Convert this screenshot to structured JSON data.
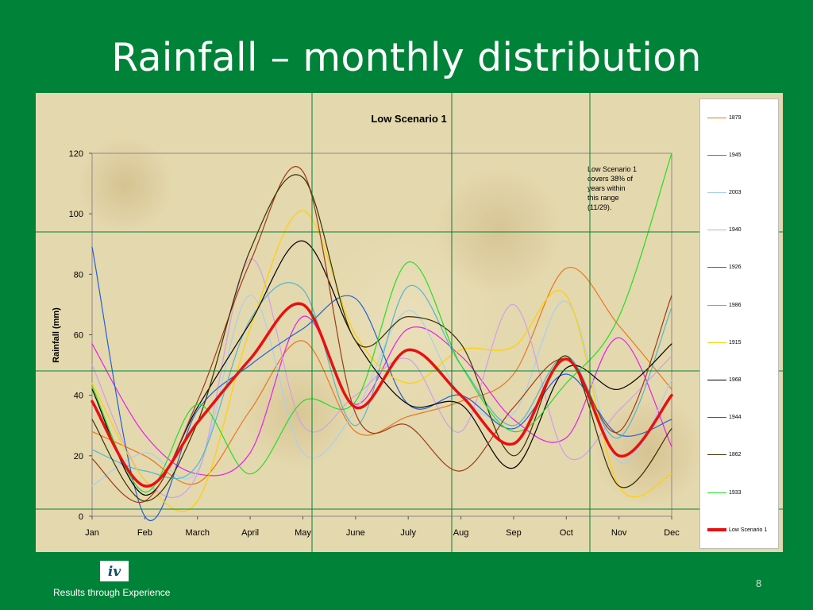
{
  "slide": {
    "title": "Rainfall – monthly distribution",
    "tagline": "Results through Experience",
    "page_number": "8",
    "logo_text": "iv"
  },
  "colors": {
    "background": "#008238",
    "chart_panel": "#e4d8ae",
    "divider_lines": "#008238"
  },
  "chart_data": {
    "type": "line",
    "title": "Low Scenario 1",
    "xlabel": "",
    "ylabel": "Rainfall (mm)",
    "ylim": [
      0,
      120
    ],
    "yticks": [
      0,
      20,
      40,
      60,
      80,
      100,
      120
    ],
    "grid": false,
    "legend_position": "right",
    "categories": [
      "Jan",
      "Feb",
      "March",
      "April",
      "May",
      "June",
      "July",
      "Aug",
      "Sep",
      "Oct",
      "Nov",
      "Dec"
    ],
    "annotation": "Low Scenario 1 covers 38% of years within this range (11/29).",
    "series": [
      {
        "name": "1879",
        "color": "#e8781e",
        "width": 1.2,
        "values": [
          28,
          20,
          11,
          35,
          58,
          28,
          33,
          38,
          47,
          82,
          63,
          42
        ]
      },
      {
        "name": "1945",
        "color": "#e81ee8",
        "width": 1.2,
        "values": [
          57,
          27,
          14,
          21,
          66,
          37,
          62,
          53,
          32,
          26,
          59,
          23
        ]
      },
      {
        "name": "2003",
        "color": "#a8d0f0",
        "width": 1.2,
        "values": [
          10,
          21,
          15,
          73,
          21,
          35,
          68,
          40,
          34,
          71,
          18,
          45
        ]
      },
      {
        "name": "1940",
        "color": "#d0a0e8",
        "width": 1.2,
        "values": [
          50,
          12,
          14,
          85,
          30,
          40,
          52,
          28,
          70,
          20,
          35,
          53
        ]
      },
      {
        "name": "1926",
        "color": "#2060d8",
        "width": 1.2,
        "values": [
          89,
          0,
          35,
          50,
          62,
          72,
          37,
          40,
          29,
          47,
          27,
          32
        ]
      },
      {
        "name": "1986",
        "color": "#50b8c8",
        "width": 1.2,
        "values": [
          22,
          15,
          17,
          65,
          75,
          30,
          76,
          50,
          30,
          53,
          26,
          69
        ]
      },
      {
        "name": "1915",
        "color": "#ffd000",
        "width": 1.2,
        "values": [
          44,
          12,
          5,
          62,
          101,
          60,
          44,
          55,
          56,
          73,
          10,
          14
        ]
      },
      {
        "name": "1968",
        "color": "#000000",
        "width": 1.2,
        "values": [
          42,
          7,
          36,
          64,
          91,
          58,
          37,
          37,
          16,
          49,
          42,
          57
        ]
      },
      {
        "name": "1944",
        "color": "#9e3a14",
        "width": 1.2,
        "values": [
          19,
          5,
          38,
          84,
          114,
          34,
          30,
          15,
          36,
          52,
          28,
          73
        ]
      },
      {
        "name": "1862",
        "color": "#3a3000",
        "width": 1.2,
        "values": [
          32,
          5,
          31,
          88,
          112,
          58,
          66,
          57,
          20,
          53,
          10,
          29
        ]
      },
      {
        "name": "1933",
        "color": "#20e020",
        "width": 1.2,
        "values": [
          43,
          8,
          37,
          14,
          38,
          38,
          84,
          50,
          28,
          44,
          66,
          120
        ]
      },
      {
        "name": "Low Scenario 1",
        "color": "#e81010",
        "width": 3.5,
        "values": [
          38,
          10,
          31,
          52,
          70,
          36,
          55,
          40,
          24,
          52,
          20,
          40
        ]
      }
    ]
  }
}
